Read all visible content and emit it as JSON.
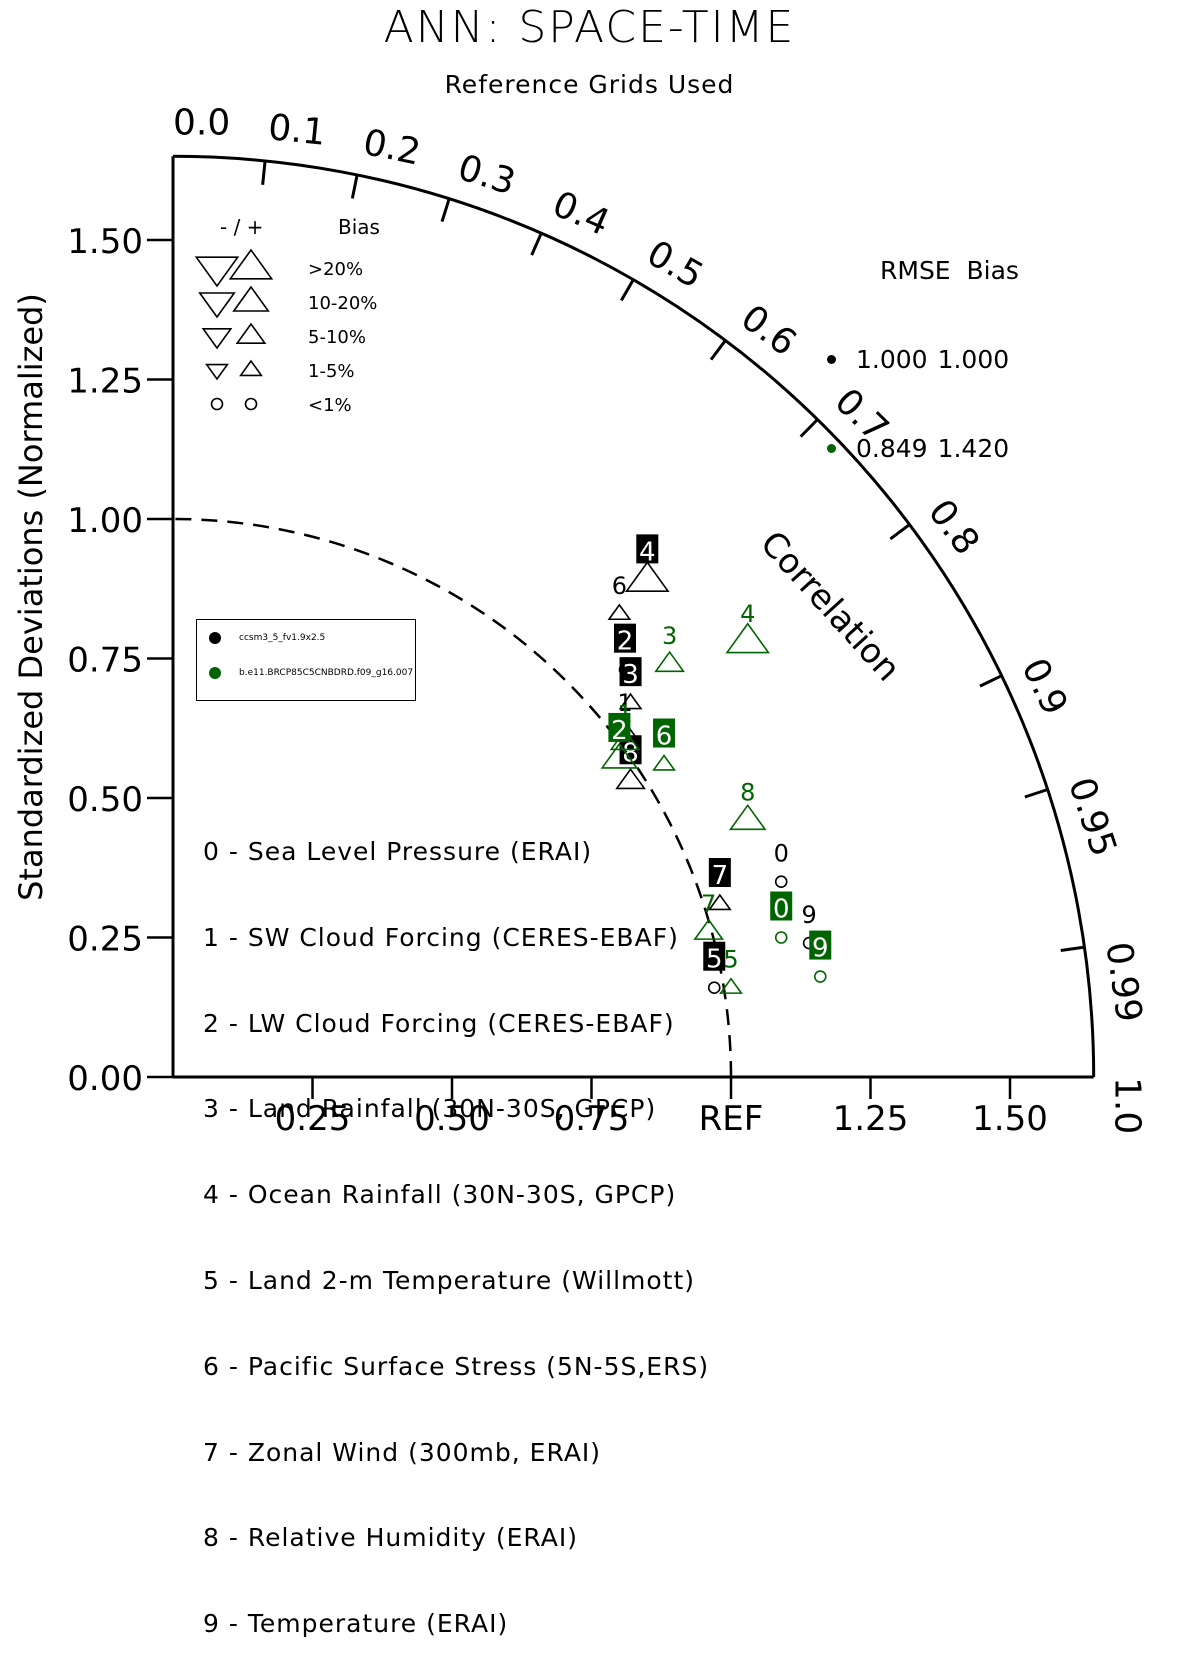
{
  "title": "ANN: SPACE-TIME",
  "subtitle": "Reference Grids Used",
  "chart_data": {
    "type": "scatter",
    "plot_kind": "taylor-diagram",
    "ylabel": "Standardized Deviations (Normalized)",
    "arc_label": "Correlation",
    "reference_label": "REF",
    "x_ticks": [
      "0.25",
      "0.50",
      "0.75",
      "REF",
      "1.25",
      "1.50"
    ],
    "y_ticks": [
      "0.00",
      "0.25",
      "0.50",
      "0.75",
      "1.00",
      "1.25",
      "1.50"
    ],
    "correlation_ticks": [
      "0.0",
      "0.1",
      "0.2",
      "0.3",
      "0.4",
      "0.5",
      "0.6",
      "0.7",
      "0.8",
      "0.9",
      "0.95",
      "0.99",
      "1.0"
    ],
    "std_max": 1.65,
    "reference_arc_std": 1.0,
    "bias_legend": {
      "header_sign": "- / +",
      "header_bias": "Bias",
      "rows": [
        {
          "label": ">20%",
          "size": 4
        },
        {
          "label": "10-20%",
          "size": 3
        },
        {
          "label": "5-10%",
          "size": 2
        },
        {
          "label": "1-5%",
          "size": 1
        },
        {
          "label": "<1%",
          "size": 0
        }
      ]
    },
    "rmse_legend": {
      "header": "RMSE  Bias",
      "rows": [
        {
          "rmse": "1.000",
          "bias": "1.000",
          "color": "#000000"
        },
        {
          "rmse": "0.849",
          "bias": "1.420",
          "color": "#006400"
        }
      ]
    },
    "series": [
      {
        "name": "ccsm3_5_fv1.9x2.5",
        "color": "#000000"
      },
      {
        "name": "b.e11.BRCP85C5CNBDRD.f09_g16.007",
        "color": "#006400"
      }
    ],
    "variables": [
      "0 - Sea Level Pressure (ERAI)",
      "1 - SW Cloud Forcing (CERES-EBAF)",
      "2 - LW Cloud Forcing (CERES-EBAF)",
      "3 - Land Rainfall (30N-30S, GPCP)",
      "4 - Ocean Rainfall (30N-30S, GPCP)",
      "5 - Land 2-m Temperature (Willmott)",
      "6 - Pacific Surface Stress (5N-5S,ERS)",
      "7 - Zonal Wind (300mb, ERAI)",
      "8 - Relative Humidity (ERAI)",
      "9 - Temperature (ERAI)"
    ],
    "points": [
      {
        "series": 0,
        "var": "0",
        "x": 1.09,
        "y": 0.35,
        "sym": "o",
        "size": 0,
        "boxed": false
      },
      {
        "series": 0,
        "var": "1",
        "x": 0.81,
        "y": 0.62,
        "sym": "up",
        "size": 1,
        "boxed": false
      },
      {
        "series": 0,
        "var": "2",
        "x": 0.81,
        "y": 0.73,
        "sym": "o",
        "size": 0,
        "boxed": true
      },
      {
        "series": 0,
        "var": "3",
        "x": 0.82,
        "y": 0.67,
        "sym": "up",
        "size": 1,
        "boxed": true
      },
      {
        "series": 0,
        "var": "4",
        "x": 0.85,
        "y": 0.89,
        "sym": "up",
        "size": 4,
        "boxed": true
      },
      {
        "series": 0,
        "var": "5",
        "x": 0.97,
        "y": 0.16,
        "sym": "o",
        "size": 0,
        "boxed": true
      },
      {
        "series": 0,
        "var": "6",
        "x": 0.8,
        "y": 0.83,
        "sym": "up",
        "size": 1,
        "boxed": false
      },
      {
        "series": 0,
        "var": "7",
        "x": 0.98,
        "y": 0.31,
        "sym": "up",
        "size": 1,
        "boxed": true
      },
      {
        "series": 0,
        "var": "8",
        "x": 0.82,
        "y": 0.53,
        "sym": "up",
        "size": 2,
        "boxed": true
      },
      {
        "series": 0,
        "var": "9",
        "x": 1.14,
        "y": 0.24,
        "sym": "o",
        "size": 0,
        "boxed": false
      },
      {
        "series": 1,
        "var": "0",
        "x": 1.09,
        "y": 0.25,
        "sym": "o",
        "size": 0,
        "boxed": true
      },
      {
        "series": 1,
        "var": "1",
        "x": 0.81,
        "y": 0.6,
        "sym": "up",
        "size": 2,
        "boxed": false
      },
      {
        "series": 1,
        "var": "2",
        "x": 0.8,
        "y": 0.57,
        "sym": "up",
        "size": 3,
        "boxed": true
      },
      {
        "series": 1,
        "var": "3",
        "x": 0.89,
        "y": 0.74,
        "sym": "up",
        "size": 2,
        "boxed": false
      },
      {
        "series": 1,
        "var": "4",
        "x": 1.03,
        "y": 0.78,
        "sym": "up",
        "size": 4,
        "boxed": false
      },
      {
        "series": 1,
        "var": "5",
        "x": 1.0,
        "y": 0.16,
        "sym": "up",
        "size": 1,
        "boxed": false
      },
      {
        "series": 1,
        "var": "6",
        "x": 0.88,
        "y": 0.56,
        "sym": "up",
        "size": 1,
        "boxed": true
      },
      {
        "series": 1,
        "var": "7",
        "x": 0.96,
        "y": 0.26,
        "sym": "up",
        "size": 2,
        "boxed": false
      },
      {
        "series": 1,
        "var": "8",
        "x": 1.03,
        "y": 0.46,
        "sym": "up",
        "size": 3,
        "boxed": false
      },
      {
        "series": 1,
        "var": "9",
        "x": 1.16,
        "y": 0.18,
        "sym": "o",
        "size": 0,
        "boxed": true
      }
    ]
  }
}
